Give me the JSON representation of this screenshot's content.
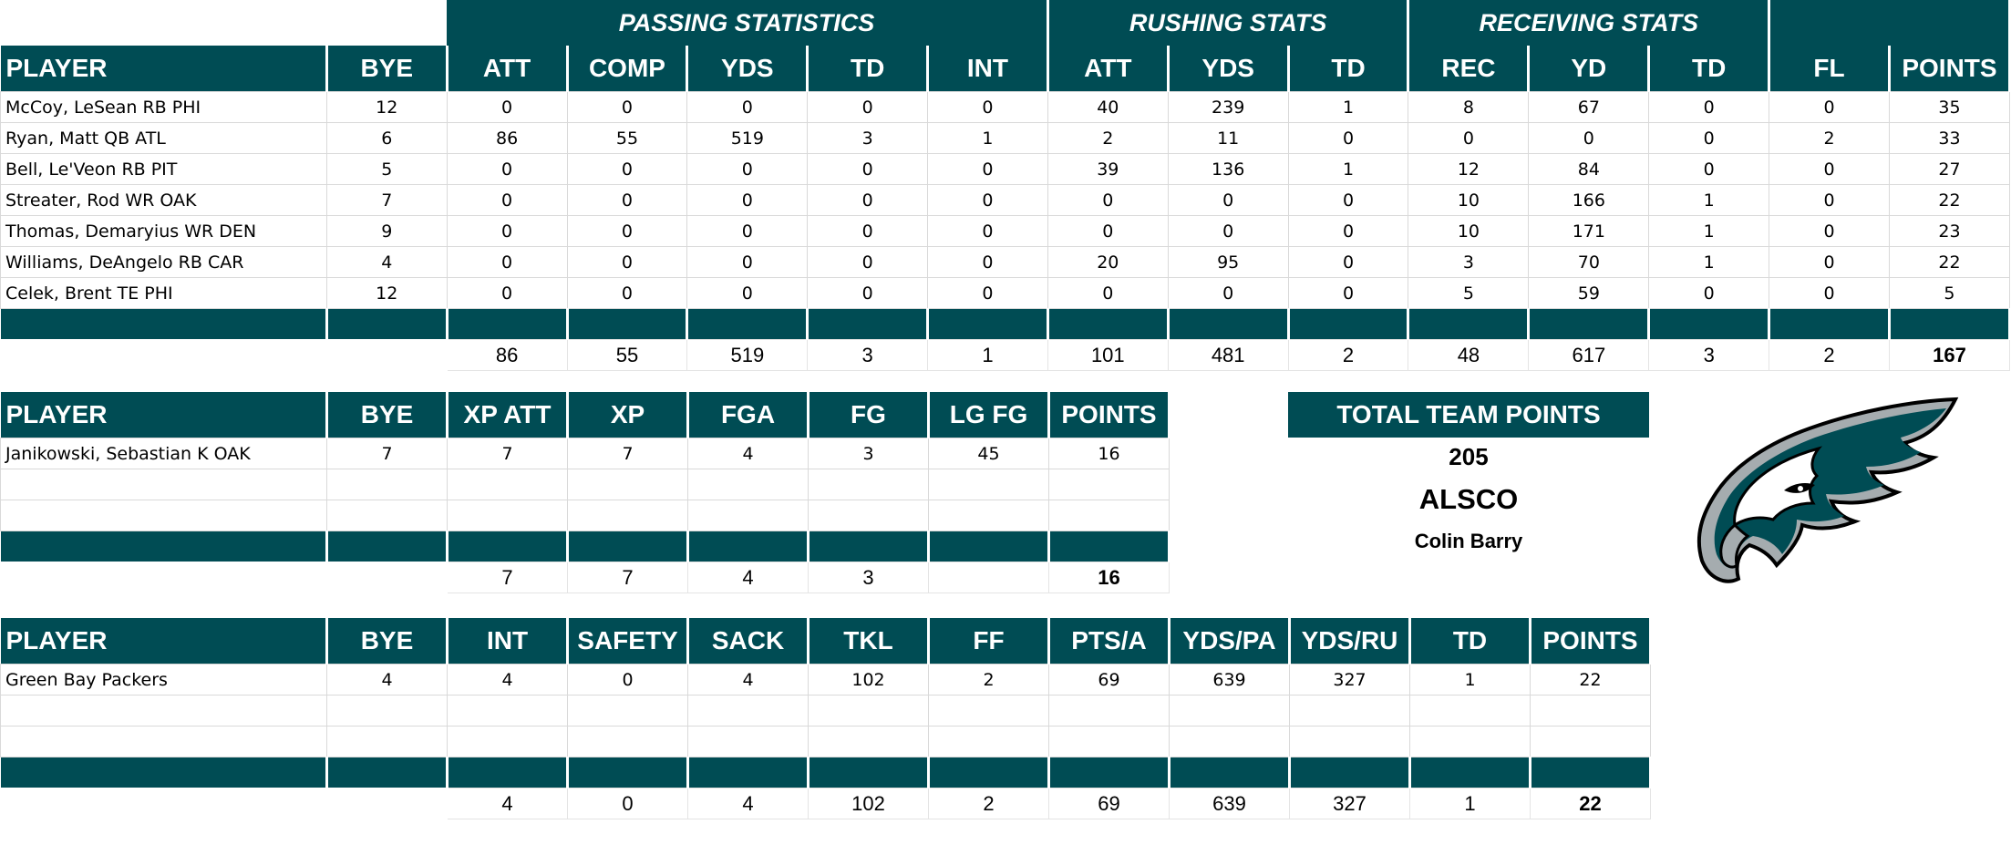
{
  "offense": {
    "group_headers": [
      "PASSING STATISTICS",
      "RUSHING STATS",
      "RECEIVING STATS"
    ],
    "columns": [
      "PLAYER",
      "BYE",
      "ATT",
      "COMP",
      "YDS",
      "TD",
      "INT",
      "ATT",
      "YDS",
      "TD",
      "REC",
      "YD",
      "TD",
      "FL",
      "POINTS"
    ],
    "rows": [
      [
        "McCoy, LeSean RB PHI",
        "12",
        "0",
        "0",
        "0",
        "0",
        "0",
        "40",
        "239",
        "1",
        "8",
        "67",
        "0",
        "0",
        "35"
      ],
      [
        "Ryan, Matt QB ATL",
        "6",
        "86",
        "55",
        "519",
        "3",
        "1",
        "2",
        "11",
        "0",
        "0",
        "0",
        "0",
        "2",
        "33"
      ],
      [
        "Bell, Le'Veon RB PIT",
        "5",
        "0",
        "0",
        "0",
        "0",
        "0",
        "39",
        "136",
        "1",
        "12",
        "84",
        "0",
        "0",
        "27"
      ],
      [
        "Streater, Rod WR OAK",
        "7",
        "0",
        "0",
        "0",
        "0",
        "0",
        "0",
        "0",
        "0",
        "10",
        "166",
        "1",
        "0",
        "22"
      ],
      [
        "Thomas, Demaryius WR DEN",
        "9",
        "0",
        "0",
        "0",
        "0",
        "0",
        "0",
        "0",
        "0",
        "10",
        "171",
        "1",
        "0",
        "23"
      ],
      [
        "Williams, DeAngelo RB CAR",
        "4",
        "0",
        "0",
        "0",
        "0",
        "0",
        "20",
        "95",
        "0",
        "3",
        "70",
        "1",
        "0",
        "22"
      ],
      [
        "Celek, Brent TE PHI",
        "12",
        "0",
        "0",
        "0",
        "0",
        "0",
        "0",
        "0",
        "0",
        "5",
        "59",
        "0",
        "0",
        "5"
      ]
    ],
    "totals": [
      "",
      "",
      "86",
      "55",
      "519",
      "3",
      "1",
      "101",
      "481",
      "2",
      "48",
      "617",
      "3",
      "2",
      "167"
    ]
  },
  "kicker": {
    "columns": [
      "PLAYER",
      "BYE",
      "XP ATT",
      "XP",
      "FGA",
      "FG",
      "LG FG",
      "POINTS"
    ],
    "rows": [
      [
        "Janikowski, Sebastian K OAK",
        "7",
        "7",
        "7",
        "4",
        "3",
        "45",
        "16"
      ],
      [
        "",
        "",
        "",
        "",
        "",
        "",
        "",
        ""
      ],
      [
        "",
        "",
        "",
        "",
        "",
        "",
        "",
        ""
      ]
    ],
    "totals": [
      "",
      "",
      "7",
      "7",
      "4",
      "3",
      "",
      "16"
    ]
  },
  "defense": {
    "columns": [
      "PLAYER",
      "BYE",
      "INT",
      "SAFETY",
      "SACK",
      "TKL",
      "FF",
      "PTS/A",
      "YDS/PA",
      "YDS/RU",
      "TD",
      "POINTS"
    ],
    "rows": [
      [
        "Green Bay Packers",
        "4",
        "4",
        "0",
        "4",
        "102",
        "2",
        "69",
        "639",
        "327",
        "1",
        "22"
      ],
      [
        "",
        "",
        "",
        "",
        "",
        "",
        "",
        "",
        "",
        "",
        "",
        ""
      ],
      [
        "",
        "",
        "",
        "",
        "",
        "",
        "",
        "",
        "",
        "",
        "",
        ""
      ]
    ],
    "totals": [
      "",
      "",
      "4",
      "0",
      "4",
      "102",
      "2",
      "69",
      "639",
      "327",
      "1",
      "22"
    ]
  },
  "team_points": {
    "label": "TOTAL TEAM POINTS",
    "value": "205",
    "team_name": "ALSCO",
    "owner": "Colin Barry"
  },
  "logo": {
    "icon": "eagle-head-logo-icon"
  },
  "colors": {
    "header": "#004c54",
    "logo_dark": "#004c54",
    "logo_silver": "#a5acaf"
  }
}
